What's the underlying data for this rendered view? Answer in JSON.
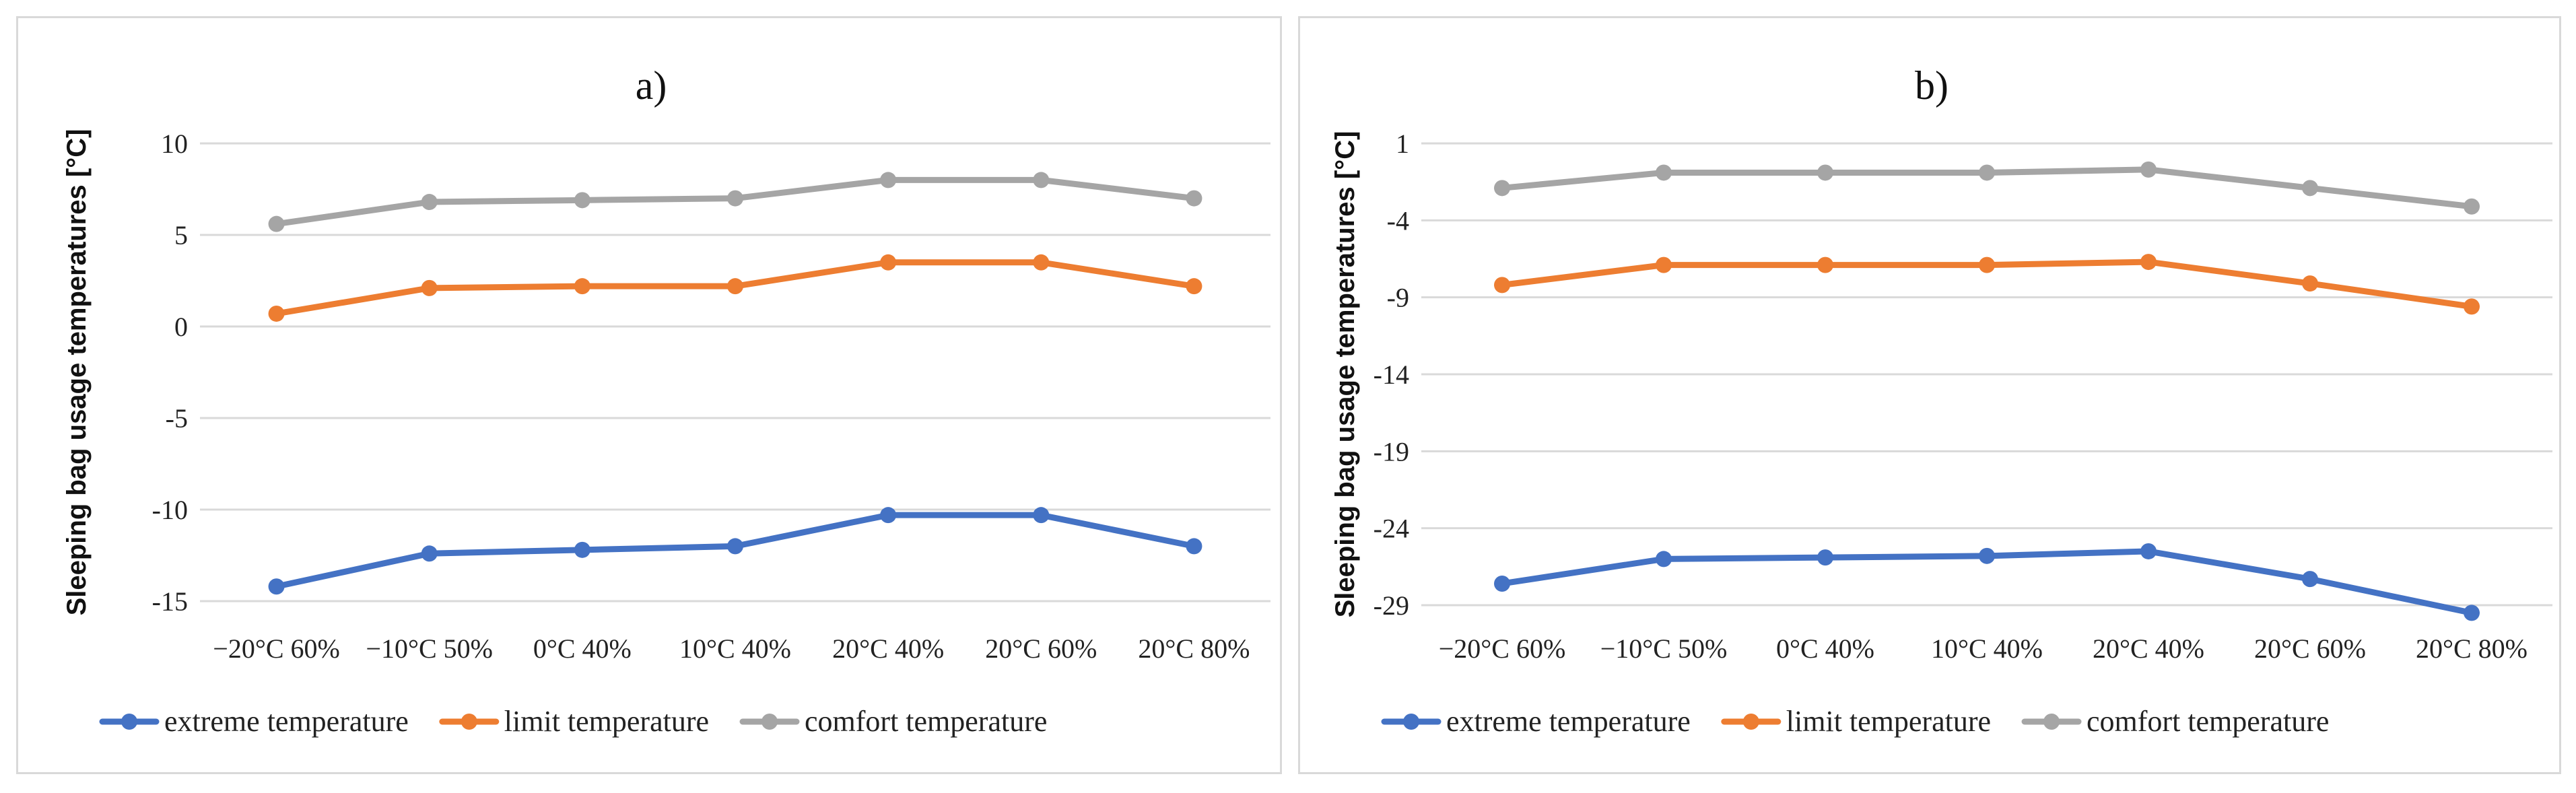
{
  "chart_data": [
    {
      "type": "line",
      "title": "a)",
      "xlabel": "",
      "ylabel": "Sleeping bag usage temperatures [°C]",
      "categories": [
        "−20°C 60%",
        "−10°C 50%",
        "0°C 40%",
        "10°C 40%",
        "20°C 40%",
        "20°C 60%",
        "20°C 80%"
      ],
      "ylim": [
        -15,
        10
      ],
      "yticks": [
        "10",
        "5",
        "0",
        "-5",
        "-10",
        "-15"
      ],
      "ytick_values": [
        10,
        5,
        0,
        -5,
        -10,
        -15
      ],
      "grid": true,
      "legend_position": "bottom",
      "series": [
        {
          "name": "extreme temperature",
          "color": "#4472c4",
          "values": [
            -14.2,
            -12.4,
            -12.2,
            -12.0,
            -10.3,
            -10.3,
            -12.0
          ]
        },
        {
          "name": "limit temperature",
          "color": "#ed7d31",
          "values": [
            0.7,
            2.1,
            2.2,
            2.2,
            3.5,
            3.5,
            2.2
          ]
        },
        {
          "name": "comfort temperature",
          "color": "#a5a5a5",
          "values": [
            5.6,
            6.8,
            6.9,
            7.0,
            8.0,
            8.0,
            7.0
          ]
        }
      ]
    },
    {
      "type": "line",
      "title": "b)",
      "xlabel": "",
      "ylabel": "Sleeping bag usage temperatures [°C]",
      "categories": [
        "−20°C 60%",
        "−10°C 50%",
        "0°C 40%",
        "10°C 40%",
        "20°C 40%",
        "20°C 60%",
        "20°C 80%"
      ],
      "ylim": [
        -29,
        1
      ],
      "yticks": [
        "1",
        "-4",
        "-9",
        "-14",
        "-19",
        "-24",
        "-29"
      ],
      "ytick_values": [
        1,
        -4,
        -9,
        -14,
        -19,
        -24,
        -29
      ],
      "grid": true,
      "legend_position": "bottom",
      "series": [
        {
          "name": "extreme temperature",
          "color": "#4472c4",
          "values": [
            -27.6,
            -26.0,
            -25.9,
            -25.8,
            -25.5,
            -27.3,
            -29.5
          ]
        },
        {
          "name": "limit temperature",
          "color": "#ed7d31",
          "values": [
            -8.2,
            -6.9,
            -6.9,
            -6.9,
            -6.7,
            -8.1,
            -9.6
          ]
        },
        {
          "name": "comfort temperature",
          "color": "#a5a5a5",
          "values": [
            -1.9,
            -0.9,
            -0.9,
            -0.9,
            -0.7,
            -1.9,
            -3.1
          ]
        }
      ]
    }
  ]
}
